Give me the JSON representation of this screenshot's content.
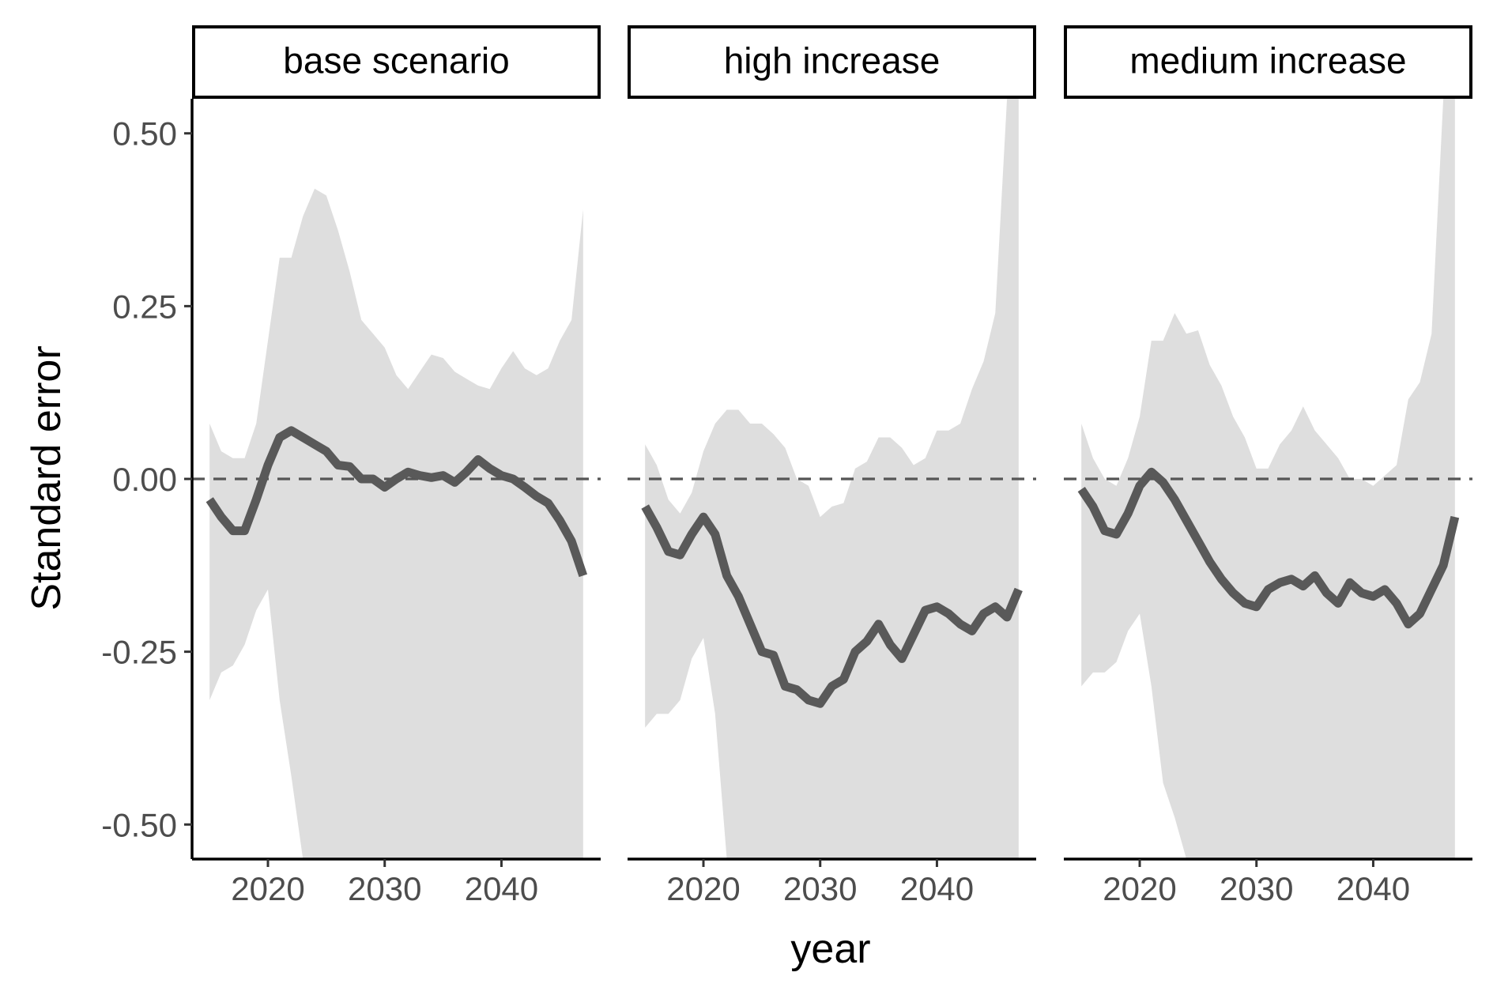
{
  "chart_data": {
    "type": "line",
    "facets": [
      "base scenario",
      "high increase",
      "medium increase"
    ],
    "xlabel": "year",
    "ylabel": "Standard error",
    "xlim": [
      2013.5,
      2048.5
    ],
    "ylim": [
      -0.55,
      0.55
    ],
    "x_ticks": [
      2020,
      2030,
      2040
    ],
    "x_tick_labels": [
      "2020",
      "2030",
      "2040"
    ],
    "y_ticks": [
      0.5,
      0.25,
      0.0,
      -0.25,
      -0.5
    ],
    "y_tick_labels": [
      "0.50",
      "0.25",
      "0.00",
      "-0.25",
      "-0.50"
    ],
    "reference_line": {
      "y": 0,
      "style": "dashed"
    },
    "colors": {
      "line": "#595959",
      "ribbon": "#dedede",
      "reference": "#555555"
    },
    "x": [
      2015,
      2016,
      2017,
      2018,
      2019,
      2020,
      2021,
      2022,
      2023,
      2024,
      2025,
      2026,
      2027,
      2028,
      2029,
      2030,
      2031,
      2032,
      2033,
      2034,
      2035,
      2036,
      2037,
      2038,
      2039,
      2040,
      2041,
      2042,
      2043,
      2044,
      2045,
      2046,
      2047
    ],
    "panels": [
      {
        "name": "base scenario",
        "mean": [
          -0.03,
          -0.055,
          -0.075,
          -0.075,
          -0.03,
          0.02,
          0.06,
          0.07,
          0.06,
          0.05,
          0.04,
          0.02,
          0.018,
          0.0,
          0.0,
          -0.012,
          0.0,
          0.01,
          0.005,
          0.002,
          0.005,
          -0.005,
          0.01,
          0.028,
          0.015,
          0.005,
          0.0,
          -0.012,
          -0.025,
          -0.035,
          -0.06,
          -0.09,
          -0.14
        ],
        "upper": [
          0.08,
          0.04,
          0.03,
          0.03,
          0.08,
          0.2,
          0.32,
          0.32,
          0.38,
          0.42,
          0.41,
          0.36,
          0.3,
          0.23,
          0.21,
          0.19,
          0.15,
          0.13,
          0.155,
          0.18,
          0.175,
          0.155,
          0.145,
          0.135,
          0.13,
          0.16,
          0.185,
          0.16,
          0.15,
          0.16,
          0.2,
          0.23,
          0.39
        ],
        "lower": [
          -0.32,
          -0.28,
          -0.27,
          -0.24,
          -0.19,
          -0.16,
          -0.32,
          -0.43,
          -0.55,
          -0.55,
          -0.55,
          -0.55,
          -0.55,
          -0.55,
          -0.55,
          -0.55,
          -0.55,
          -0.55,
          -0.55,
          -0.55,
          -0.55,
          -0.55,
          -0.55,
          -0.55,
          -0.55,
          -0.55,
          -0.55,
          -0.55,
          -0.55,
          -0.55,
          -0.55,
          -0.55,
          -0.55
        ]
      },
      {
        "name": "high increase",
        "mean": [
          -0.04,
          -0.07,
          -0.105,
          -0.11,
          -0.08,
          -0.055,
          -0.08,
          -0.14,
          -0.17,
          -0.21,
          -0.25,
          -0.255,
          -0.3,
          -0.305,
          -0.32,
          -0.325,
          -0.3,
          -0.29,
          -0.25,
          -0.235,
          -0.21,
          -0.24,
          -0.26,
          -0.225,
          -0.19,
          -0.185,
          -0.195,
          -0.21,
          -0.22,
          -0.195,
          -0.185,
          -0.2,
          -0.16
        ],
        "upper": [
          0.05,
          0.02,
          -0.03,
          -0.05,
          -0.02,
          0.04,
          0.08,
          0.1,
          0.1,
          0.08,
          0.08,
          0.065,
          0.045,
          0.0,
          -0.01,
          -0.055,
          -0.04,
          -0.035,
          0.015,
          0.025,
          0.06,
          0.06,
          0.045,
          0.02,
          0.03,
          0.07,
          0.07,
          0.08,
          0.13,
          0.17,
          0.24,
          0.55,
          0.55
        ],
        "lower": [
          -0.36,
          -0.34,
          -0.34,
          -0.32,
          -0.26,
          -0.23,
          -0.34,
          -0.55,
          -0.55,
          -0.55,
          -0.55,
          -0.55,
          -0.55,
          -0.55,
          -0.55,
          -0.55,
          -0.55,
          -0.55,
          -0.55,
          -0.55,
          -0.55,
          -0.55,
          -0.55,
          -0.55,
          -0.55,
          -0.55,
          -0.55,
          -0.55,
          -0.55,
          -0.55,
          -0.55,
          -0.55,
          -0.55
        ]
      },
      {
        "name": "medium increase",
        "mean": [
          -0.015,
          -0.04,
          -0.075,
          -0.08,
          -0.05,
          -0.01,
          0.01,
          -0.005,
          -0.03,
          -0.06,
          -0.09,
          -0.12,
          -0.145,
          -0.165,
          -0.18,
          -0.185,
          -0.16,
          -0.15,
          -0.145,
          -0.155,
          -0.14,
          -0.165,
          -0.18,
          -0.15,
          -0.165,
          -0.17,
          -0.16,
          -0.18,
          -0.21,
          -0.195,
          -0.16,
          -0.125,
          -0.055
        ],
        "upper": [
          0.08,
          0.03,
          0.0,
          -0.01,
          0.03,
          0.09,
          0.2,
          0.2,
          0.24,
          0.21,
          0.215,
          0.165,
          0.135,
          0.09,
          0.06,
          0.015,
          0.015,
          0.05,
          0.07,
          0.105,
          0.07,
          0.05,
          0.03,
          0.0,
          0.0,
          -0.01,
          0.005,
          0.02,
          0.115,
          0.14,
          0.21,
          0.55,
          0.55
        ],
        "lower": [
          -0.3,
          -0.28,
          -0.28,
          -0.265,
          -0.22,
          -0.195,
          -0.3,
          -0.44,
          -0.49,
          -0.55,
          -0.55,
          -0.55,
          -0.55,
          -0.55,
          -0.55,
          -0.55,
          -0.55,
          -0.55,
          -0.55,
          -0.55,
          -0.55,
          -0.55,
          -0.55,
          -0.55,
          -0.55,
          -0.55,
          -0.55,
          -0.55,
          -0.55,
          -0.55,
          -0.55,
          -0.55,
          -0.55
        ]
      }
    ]
  }
}
